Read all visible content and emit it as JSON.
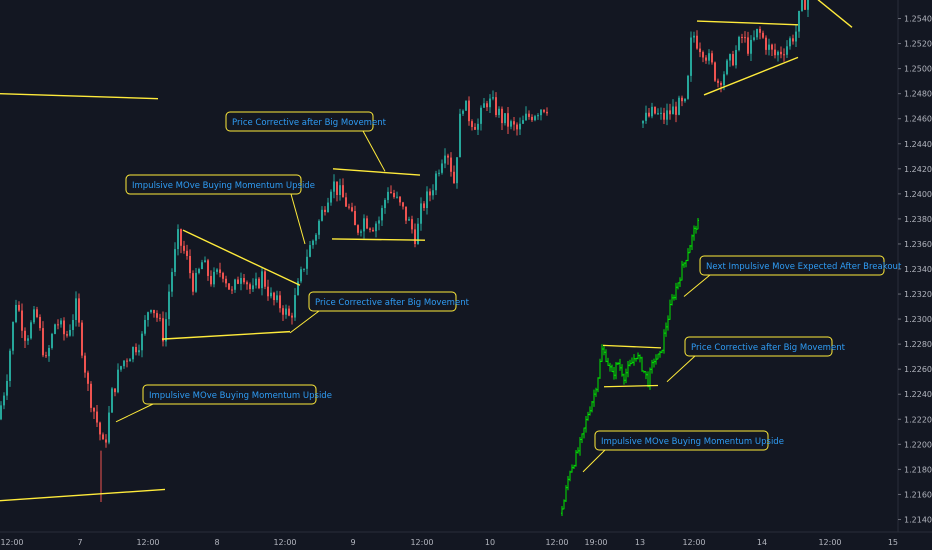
{
  "chart_data": {
    "type": "candlestick",
    "title": "",
    "xlabel": "",
    "ylabel": "",
    "ylim": [
      1.213,
      1.255
    ],
    "grid": false,
    "yticks": [
      "1.21400",
      "1.21600",
      "1.21800",
      "1.22000",
      "1.22200",
      "1.22400",
      "1.22600",
      "1.22800",
      "1.23000",
      "1.23200",
      "1.23400",
      "1.23600",
      "1.23800",
      "1.24000",
      "1.24200",
      "1.24400",
      "1.24600",
      "1.24800",
      "1.25000",
      "1.25200",
      "1.25400"
    ],
    "xticks": [
      "12:00",
      "7",
      "12:00",
      "8",
      "12:00",
      "9",
      "12:00",
      "10",
      "12:00",
      "19:00",
      "13",
      "12:00",
      "14",
      "12:00",
      "15"
    ],
    "price_path": [
      {
        "t": 0,
        "p": 1.222
      },
      {
        "t": 8,
        "p": 1.225
      },
      {
        "t": 18,
        "p": 1.2315
      },
      {
        "t": 28,
        "p": 1.2285
      },
      {
        "t": 38,
        "p": 1.2305
      },
      {
        "t": 48,
        "p": 1.2265
      },
      {
        "t": 58,
        "p": 1.23
      },
      {
        "t": 68,
        "p": 1.2285
      },
      {
        "t": 78,
        "p": 1.231
      },
      {
        "t": 90,
        "p": 1.2245
      },
      {
        "t": 100,
        "p": 1.2215
      },
      {
        "t": 106,
        "p": 1.2195
      },
      {
        "t": 114,
        "p": 1.224
      },
      {
        "t": 124,
        "p": 1.2265
      },
      {
        "t": 134,
        "p": 1.2275
      },
      {
        "t": 144,
        "p": 1.2285
      },
      {
        "t": 152,
        "p": 1.2315
      },
      {
        "t": 160,
        "p": 1.23
      },
      {
        "t": 166,
        "p": 1.2285
      },
      {
        "t": 172,
        "p": 1.233
      },
      {
        "t": 180,
        "p": 1.2365
      },
      {
        "t": 188,
        "p": 1.235
      },
      {
        "t": 196,
        "p": 1.2325
      },
      {
        "t": 204,
        "p": 1.2345
      },
      {
        "t": 214,
        "p": 1.233
      },
      {
        "t": 224,
        "p": 1.234
      },
      {
        "t": 234,
        "p": 1.232
      },
      {
        "t": 244,
        "p": 1.234
      },
      {
        "t": 254,
        "p": 1.232
      },
      {
        "t": 264,
        "p": 1.2335
      },
      {
        "t": 274,
        "p": 1.2315
      },
      {
        "t": 284,
        "p": 1.231
      },
      {
        "t": 292,
        "p": 1.23
      },
      {
        "t": 300,
        "p": 1.2325
      },
      {
        "t": 308,
        "p": 1.235
      },
      {
        "t": 316,
        "p": 1.2365
      },
      {
        "t": 324,
        "p": 1.2385
      },
      {
        "t": 334,
        "p": 1.241
      },
      {
        "t": 342,
        "p": 1.24
      },
      {
        "t": 350,
        "p": 1.239
      },
      {
        "t": 358,
        "p": 1.237
      },
      {
        "t": 366,
        "p": 1.238
      },
      {
        "t": 374,
        "p": 1.2375
      },
      {
        "t": 382,
        "p": 1.238
      },
      {
        "t": 390,
        "p": 1.2405
      },
      {
        "t": 398,
        "p": 1.2395
      },
      {
        "t": 406,
        "p": 1.2385
      },
      {
        "t": 412,
        "p": 1.2375
      },
      {
        "t": 418,
        "p": 1.2365
      },
      {
        "t": 424,
        "p": 1.239
      },
      {
        "t": 432,
        "p": 1.24
      },
      {
        "t": 440,
        "p": 1.242
      },
      {
        "t": 448,
        "p": 1.244
      },
      {
        "t": 456,
        "p": 1.241
      },
      {
        "t": 464,
        "p": 1.2475
      },
      {
        "t": 472,
        "p": 1.246
      },
      {
        "t": 480,
        "p": 1.2455
      },
      {
        "t": 488,
        "p": 1.2475
      },
      {
        "t": 496,
        "p": 1.247
      },
      {
        "t": 504,
        "p": 1.246
      },
      {
        "t": 512,
        "p": 1.2455
      },
      {
        "t": 520,
        "p": 1.245
      },
      {
        "t": 528,
        "p": 1.246
      },
      {
        "t": 536,
        "p": 1.2465
      },
      {
        "t": 544,
        "p": 1.247
      },
      {
        "t": 552,
        "p": 1.247
      },
      {
        "t": 560,
        "p": 1.2475
      },
      {
        "t": 568,
        "p": 1.248
      },
      {
        "t": 576,
        "p": 1.2475
      },
      {
        "t": 584,
        "p": 1.248
      },
      {
        "t": 592,
        "p": 1.2475
      },
      {
        "t": 600,
        "p": 1.248
      },
      {
        "t": 608,
        "p": 1.2475
      },
      {
        "t": 616,
        "p": 1.247
      },
      {
        "t": 624,
        "p": 1.2475
      },
      {
        "t": 632,
        "p": 1.2465
      },
      {
        "t": 640,
        "p": 1.2455
      },
      {
        "t": 648,
        "p": 1.246
      },
      {
        "t": 656,
        "p": 1.2465
      },
      {
        "t": 664,
        "p": 1.246
      },
      {
        "t": 672,
        "p": 1.2465
      },
      {
        "t": 680,
        "p": 1.247
      },
      {
        "t": 688,
        "p": 1.247
      },
      {
        "t": 694,
        "p": 1.253
      },
      {
        "t": 700,
        "p": 1.252
      },
      {
        "t": 706,
        "p": 1.2515
      },
      {
        "t": 712,
        "p": 1.2505
      },
      {
        "t": 720,
        "p": 1.249
      },
      {
        "t": 728,
        "p": 1.25
      },
      {
        "t": 736,
        "p": 1.251
      },
      {
        "t": 744,
        "p": 1.2525
      },
      {
        "t": 752,
        "p": 1.2515
      },
      {
        "t": 760,
        "p": 1.253
      },
      {
        "t": 768,
        "p": 1.252
      },
      {
        "t": 776,
        "p": 1.251
      },
      {
        "t": 784,
        "p": 1.2515
      },
      {
        "t": 790,
        "p": 1.252
      },
      {
        "t": 798,
        "p": 1.253
      },
      {
        "t": 804,
        "p": 1.255
      },
      {
        "t": 812,
        "p": 1.256
      }
    ],
    "trendlines": [
      {
        "from": [
          0,
          1.248
        ],
        "to": [
          158,
          1.2476
        ],
        "color": "#ffeb3b"
      },
      {
        "from": [
          0,
          1.2155
        ],
        "to": [
          165,
          1.2164
        ],
        "color": "#ffeb3b"
      },
      {
        "from": [
          183,
          1.2371
        ],
        "to": [
          300,
          1.2327
        ],
        "color": "#ffeb3b"
      },
      {
        "from": [
          162,
          1.2284
        ],
        "to": [
          290,
          1.229
        ],
        "color": "#ffeb3b"
      },
      {
        "from": [
          333,
          1.242
        ],
        "to": [
          420,
          1.2415
        ],
        "color": "#ffeb3b"
      },
      {
        "from": [
          332,
          1.2364
        ],
        "to": [
          425,
          1.2363
        ],
        "color": "#ffeb3b"
      },
      {
        "from": [
          697,
          1.2538
        ],
        "to": [
          798,
          1.2535
        ],
        "color": "#ffeb3b"
      },
      {
        "from": [
          704,
          1.2479
        ],
        "to": [
          798,
          1.2509
        ],
        "color": "#ffeb3b"
      },
      {
        "from": [
          818,
          1.2555
        ],
        "to": [
          852,
          1.2533
        ],
        "color": "#ffeb3b"
      }
    ],
    "projection": {
      "color": "#00e600",
      "path": [
        {
          "t": 562,
          "p": 1.2145
        },
        {
          "t": 566,
          "p": 1.2155
        },
        {
          "t": 572,
          "p": 1.218
        },
        {
          "t": 578,
          "p": 1.219
        },
        {
          "t": 584,
          "p": 1.2205
        },
        {
          "t": 590,
          "p": 1.2225
        },
        {
          "t": 596,
          "p": 1.224
        },
        {
          "t": 600,
          "p": 1.2255
        },
        {
          "t": 604,
          "p": 1.2275
        },
        {
          "t": 608,
          "p": 1.227
        },
        {
          "t": 614,
          "p": 1.2255
        },
        {
          "t": 620,
          "p": 1.2265
        },
        {
          "t": 626,
          "p": 1.2255
        },
        {
          "t": 632,
          "p": 1.2262
        },
        {
          "t": 638,
          "p": 1.2272
        },
        {
          "t": 644,
          "p": 1.2262
        },
        {
          "t": 650,
          "p": 1.225
        },
        {
          "t": 656,
          "p": 1.2268
        },
        {
          "t": 662,
          "p": 1.227
        },
        {
          "t": 668,
          "p": 1.2295
        },
        {
          "t": 674,
          "p": 1.2315
        },
        {
          "t": 680,
          "p": 1.233
        },
        {
          "t": 686,
          "p": 1.2345
        },
        {
          "t": 692,
          "p": 1.236
        },
        {
          "t": 698,
          "p": 1.2375
        }
      ],
      "box_top": {
        "from": [
          603,
          1.2279
        ],
        "to": [
          661,
          1.2277
        ]
      },
      "box_bottom": {
        "from": [
          604,
          1.2246
        ],
        "to": [
          658,
          1.2247
        ]
      }
    },
    "annotations": [
      {
        "text": "Price Corrective after Big Movement",
        "anchor": [
          385,
          1.2418
        ]
      },
      {
        "text": "Impulsive MOve Buying Momentum Upside",
        "anchor": [
          305,
          1.236
        ]
      },
      {
        "text": "Price Corrective after Big Movement",
        "anchor": [
          290,
          1.2289
        ]
      },
      {
        "text": "Impulsive MOve Buying Momentum Upside",
        "anchor": [
          116,
          1.2218
        ]
      },
      {
        "text": "Next Impulsive Move Expected After Breakout",
        "anchor": [
          684,
          1.2318
        ]
      },
      {
        "text": "Price Corrective after Big Movement",
        "anchor": [
          667,
          1.225
        ]
      },
      {
        "text": "Impulsive MOve Buying Momentum Upside",
        "anchor": [
          583,
          1.2178
        ]
      }
    ],
    "colors": {
      "up": "#26a69a",
      "down": "#ef5350",
      "line": "#ffeb3b",
      "callout_text": "#2f9cf4",
      "callout_border": "#ffeb3b"
    }
  }
}
